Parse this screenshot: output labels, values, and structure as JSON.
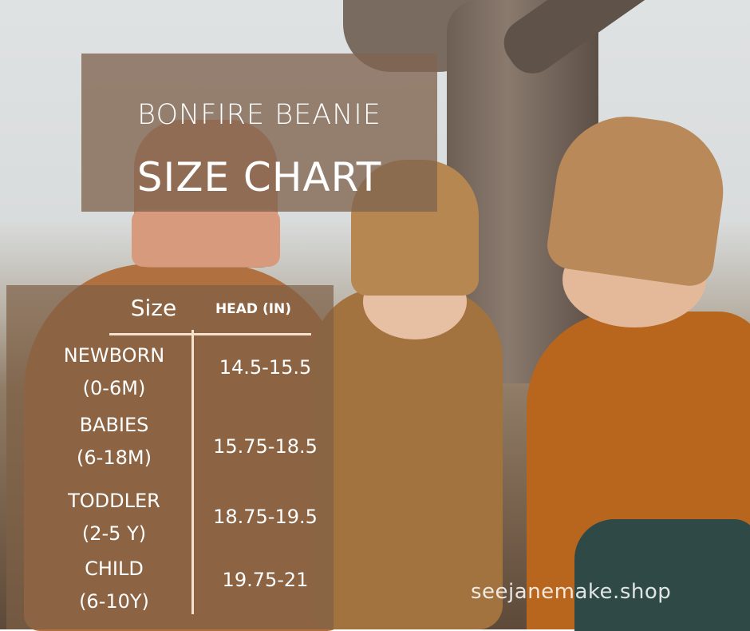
{
  "title": {
    "line1": "BONFIRE BEANIE",
    "line2": "SIZE CHART"
  },
  "table": {
    "headers": [
      "Size",
      "HEAD (IN)"
    ],
    "rows": [
      {
        "size": "NEWBORN",
        "age": "(0-6M)",
        "head": "14.5-15.5"
      },
      {
        "size": "BABIES",
        "age": "(6-18M)",
        "head": "15.75-18.5"
      },
      {
        "size": "TODDLER",
        "age": "(2-5 Y)",
        "head": "18.75-19.5"
      },
      {
        "size": "CHILD",
        "age": "(6-10Y)",
        "head": "19.75-21"
      }
    ]
  },
  "watermark": "seejanemake.shop",
  "colors": {
    "panel": "#7d5f46",
    "divider": "#f6e1cc",
    "text": "#ffffff"
  }
}
